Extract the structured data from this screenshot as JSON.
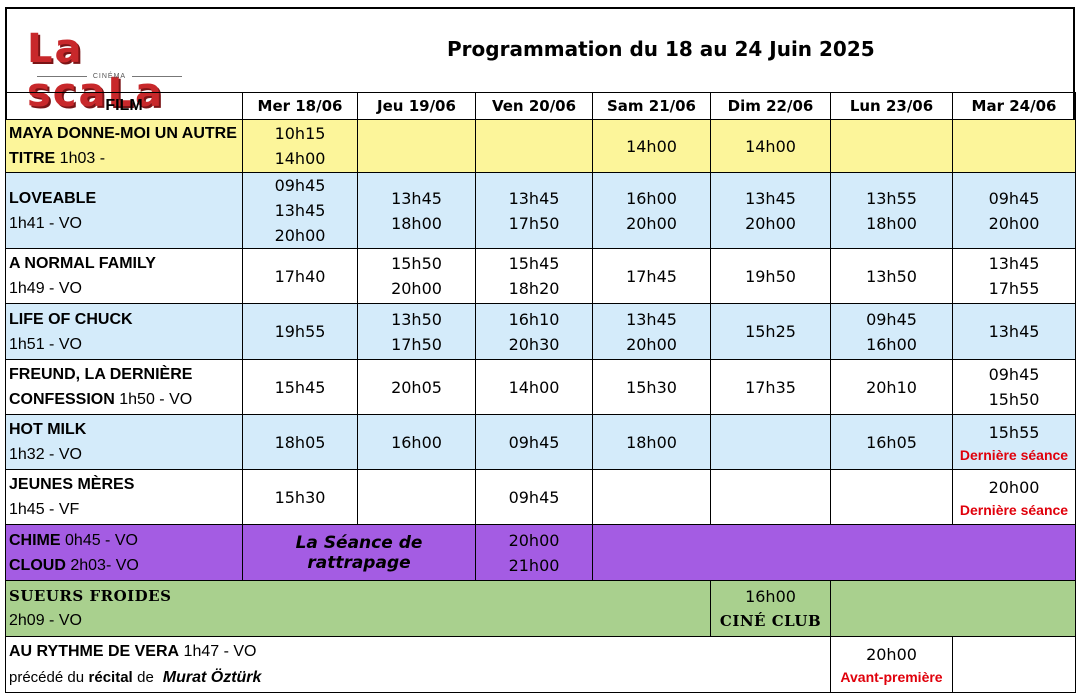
{
  "header": {
    "logo_text": "La scaLa",
    "logo_sub": "CINÉMA",
    "title": "Programmation du 18 au 24 Juin 2025"
  },
  "columns": [
    "FILM",
    "Mer 18/06",
    "Jeu 19/06",
    "Ven 20/06",
    "Sam 21/06",
    "Dim 22/06",
    "Lun 23/06",
    "Mar 24/06"
  ],
  "colors": {
    "yellow": "#fcf59a",
    "blue": "#d4ebfa",
    "purple": "#a45ce3",
    "green": "#a9d08e",
    "red_note": "#e0000b"
  },
  "rows": [
    {
      "film_name": "MAYA DONNE-MOI UN AUTRE TITRE",
      "film_meta": "1h03 -",
      "days": [
        [
          "10h15",
          "14h00"
        ],
        [],
        [],
        [
          "14h00"
        ],
        [
          "14h00"
        ],
        [],
        []
      ]
    },
    {
      "film_name": "LOVEABLE",
      "film_meta": "1h41 - VO",
      "days": [
        [
          "09h45",
          "13h45",
          "20h00"
        ],
        [
          "13h45",
          "18h00"
        ],
        [
          "13h45",
          "17h50"
        ],
        [
          "16h00",
          "20h00"
        ],
        [
          "13h45",
          "20h00"
        ],
        [
          "13h55",
          "18h00"
        ],
        [
          "09h45",
          "20h00"
        ]
      ]
    },
    {
      "film_name": "A NORMAL FAMILY",
      "film_meta": "1h49 - VO",
      "days": [
        [
          "17h40"
        ],
        [
          "15h50",
          "20h00"
        ],
        [
          "15h45",
          "18h20"
        ],
        [
          "17h45"
        ],
        [
          "19h50"
        ],
        [
          "13h50"
        ],
        [
          "13h45",
          "17h55"
        ]
      ]
    },
    {
      "film_name": "LIFE OF CHUCK",
      "film_meta": "1h51 - VO",
      "days": [
        [
          "19h55"
        ],
        [
          "13h50",
          "17h50"
        ],
        [
          "16h10",
          "20h30"
        ],
        [
          "13h45",
          "20h00"
        ],
        [
          "15h25"
        ],
        [
          "09h45",
          "16h00"
        ],
        [
          "13h45"
        ]
      ]
    },
    {
      "film_name": "FREUND, LA DERNIÈRE CONFESSION",
      "film_meta": "1h50 - VO",
      "days": [
        [
          "15h45"
        ],
        [
          "20h05"
        ],
        [
          "14h00"
        ],
        [
          "15h30"
        ],
        [
          "17h35"
        ],
        [
          "20h10"
        ],
        [
          "09h45",
          "15h50"
        ]
      ]
    },
    {
      "film_name": "HOT MILK",
      "film_meta": "1h32 - VO",
      "days": [
        [
          "18h05"
        ],
        [
          "16h00"
        ],
        [
          "09h45"
        ],
        [
          "18h00"
        ],
        [],
        [
          "16h05"
        ],
        [
          "15h55"
        ]
      ],
      "last_note": "Dernière séance"
    },
    {
      "film_name": "JEUNES MÈRES",
      "film_meta": "1h45 - VF",
      "days": [
        [
          "15h30"
        ],
        [],
        [
          "09h45"
        ],
        [],
        [],
        [],
        [
          "20h00"
        ]
      ],
      "last_note": "Dernière séance"
    }
  ],
  "rattrapage": {
    "film1_name": "CHIME",
    "film1_meta": "0h45 - VO",
    "film2_name": "CLOUD",
    "film2_meta": "2h03- VO",
    "label": "La Séance de rattrapage",
    "times": [
      "20h00",
      "21h00"
    ]
  },
  "cineclub": {
    "film_name": "SUEURS FROIDES",
    "film_meta": "2h09 - VO",
    "time": "16h00",
    "label": "CINÉ CLUB"
  },
  "avant": {
    "film_name": "AU RYTHME DE VERA",
    "film_meta": "1h47 - VO",
    "line2_a": "précédé du",
    "line2_b": "récital",
    "line2_c": "de",
    "line2_d": "Murat Öztürk",
    "time": "20h00",
    "label": "Avant-première"
  }
}
